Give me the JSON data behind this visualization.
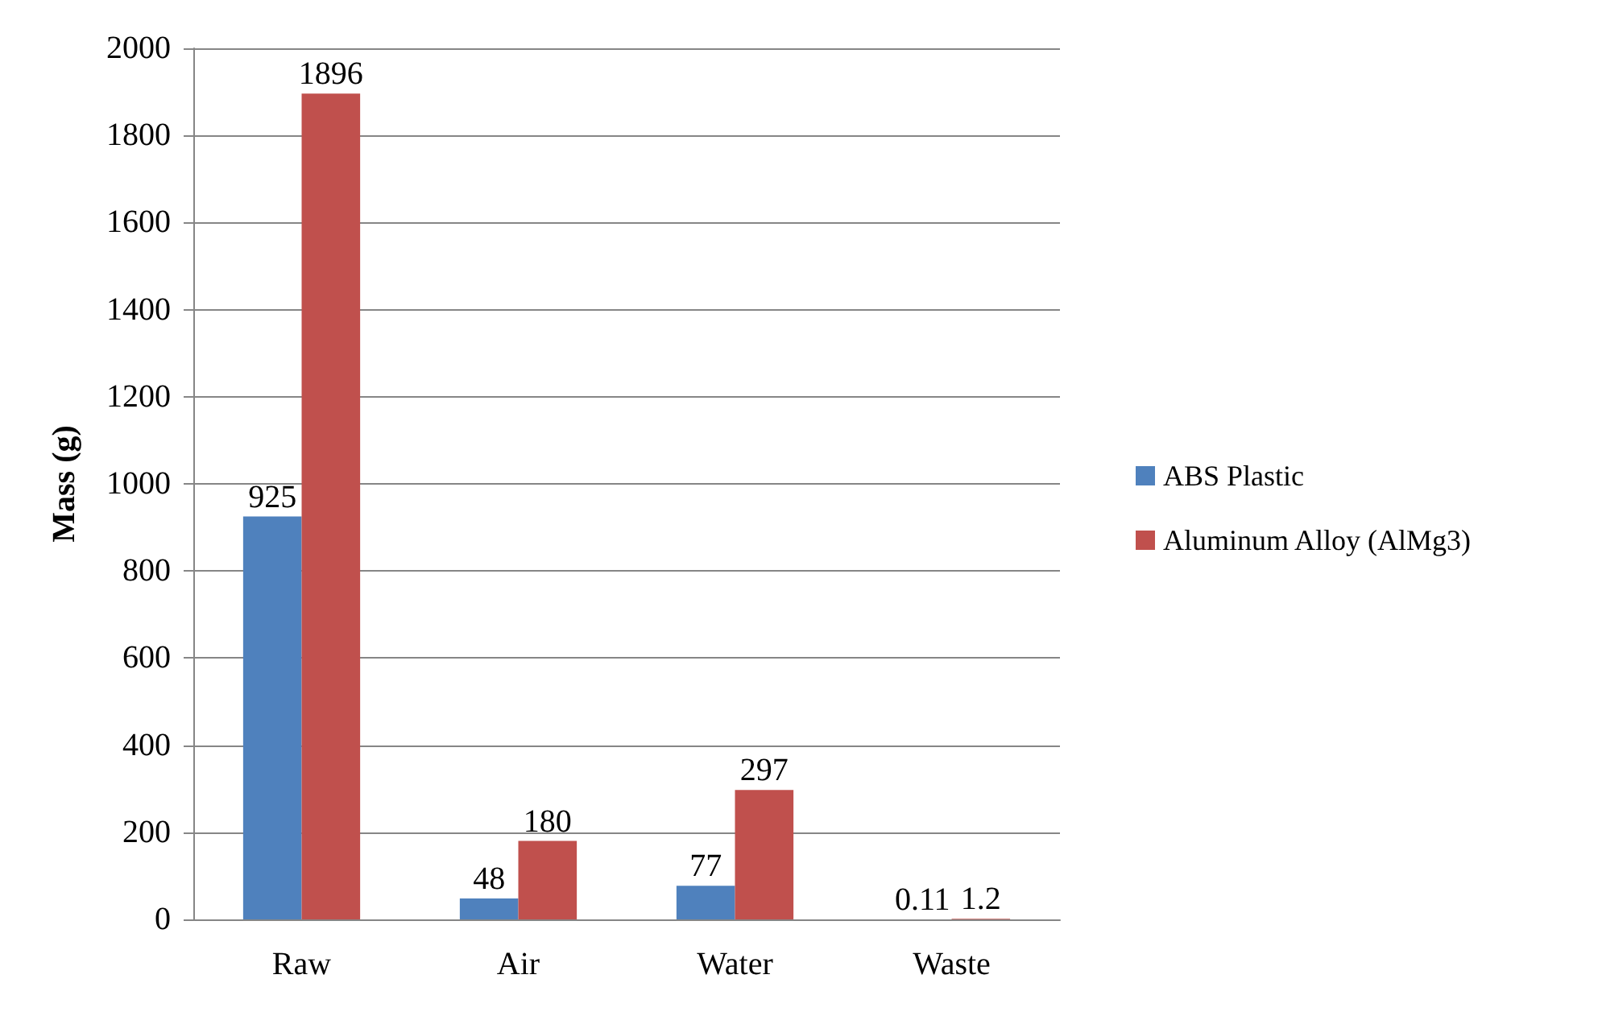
{
  "chart_data": {
    "type": "bar",
    "ylabel": "Mass (g)",
    "categories": [
      "Raw",
      "Air",
      "Water",
      "Waste"
    ],
    "series": [
      {
        "name": "ABS Plastic",
        "color": "#4f81bd",
        "values": [
          925,
          48,
          77,
          0.11
        ]
      },
      {
        "name": "Aluminum Alloy (AlMg3)",
        "color": "#c0504d",
        "values": [
          1896,
          180,
          297,
          1.2
        ]
      }
    ],
    "ylim": [
      0,
      2000
    ],
    "yticks": [
      0,
      200,
      400,
      600,
      800,
      1000,
      1200,
      1400,
      1600,
      1800,
      2000
    ],
    "grid": "y",
    "legend": "right",
    "data_labels": true
  }
}
